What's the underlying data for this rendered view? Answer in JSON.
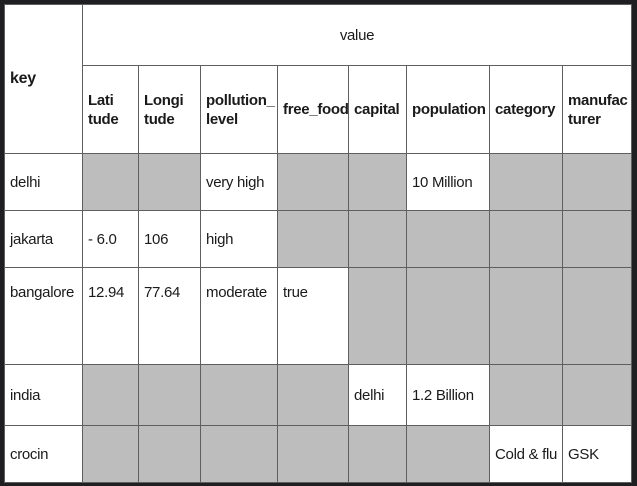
{
  "table": {
    "key_header": "key",
    "group_header": "value",
    "columns": [
      "Lati\ntude",
      "Longi\ntude",
      "pollution_\nlevel",
      "free_food",
      "capital",
      "population",
      "category",
      "manufac\nturer"
    ],
    "rows": [
      {
        "key": "delhi",
        "cells": [
          "",
          "",
          "very high",
          "",
          "",
          "10 Million",
          "",
          ""
        ]
      },
      {
        "key": "jakarta",
        "cells": [
          "- 6.0",
          "106",
          "high",
          "",
          "",
          "",
          "",
          ""
        ]
      },
      {
        "key": "bangalore",
        "cells": [
          "12.94",
          "77.64",
          "moderate",
          "true",
          "",
          "",
          "",
          ""
        ]
      },
      {
        "key": "india",
        "cells": [
          "",
          "",
          "",
          "",
          "delhi",
          "1.2 Billion",
          "",
          ""
        ]
      },
      {
        "key": "crocin",
        "cells": [
          "",
          "",
          "",
          "",
          "",
          "",
          "Cold & flu",
          "GSK"
        ]
      }
    ]
  },
  "colors": {
    "empty_cell": "#bdbdbd",
    "filled_cell": "#ffffff",
    "border": "#5f5f5f",
    "frame": "#1f1f22"
  }
}
